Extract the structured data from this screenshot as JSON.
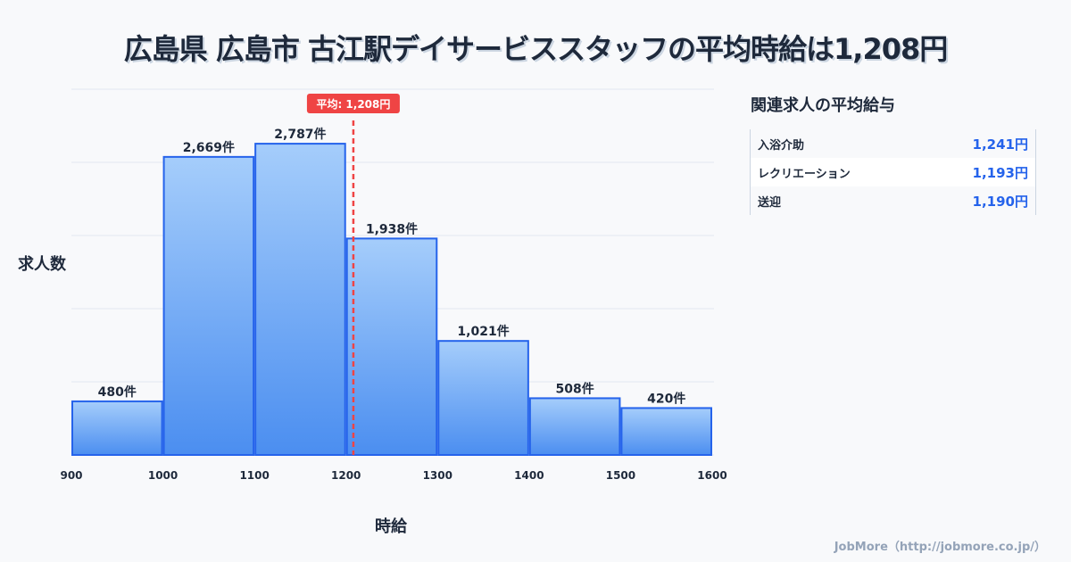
{
  "chart_data": {
    "type": "bar",
    "title": "広島県 広島市 古江駅デイサービススタッフの平均時給は1,208円",
    "xlabel": "時給",
    "ylabel": "求人数",
    "bins": [
      [
        900,
        1000
      ],
      [
        1000,
        1100
      ],
      [
        1100,
        1200
      ],
      [
        1200,
        1300
      ],
      [
        1300,
        1400
      ],
      [
        1400,
        1500
      ],
      [
        1500,
        1600
      ]
    ],
    "values": [
      480,
      2669,
      2787,
      1938,
      1021,
      508,
      420
    ],
    "data_labels": [
      "480件",
      "2,669件",
      "2,787件",
      "1,938件",
      "1,021件",
      "508件",
      "420件"
    ],
    "x_ticks": [
      "900",
      "1000",
      "1100",
      "1200",
      "1300",
      "1400",
      "1500",
      "1600"
    ],
    "xlim": [
      900,
      1600
    ],
    "ylim": [
      0,
      3275
    ],
    "grid": true,
    "mean": {
      "value": 1208,
      "label": "平均: 1,208円"
    },
    "colors": {
      "bar_top": "#a5cdfb",
      "bar_bottom": "#4b8ef0",
      "bar_stroke": "#2563eb",
      "mean": "#ef4444"
    }
  },
  "side": {
    "title": "関連求人の平均給与",
    "rows": [
      {
        "label": "入浴介助",
        "value": "1,241円"
      },
      {
        "label": "レクリエーション",
        "value": "1,193円"
      },
      {
        "label": "送迎",
        "value": "1,190円"
      }
    ]
  },
  "footer": "JobMore（http://jobmore.co.jp/）"
}
